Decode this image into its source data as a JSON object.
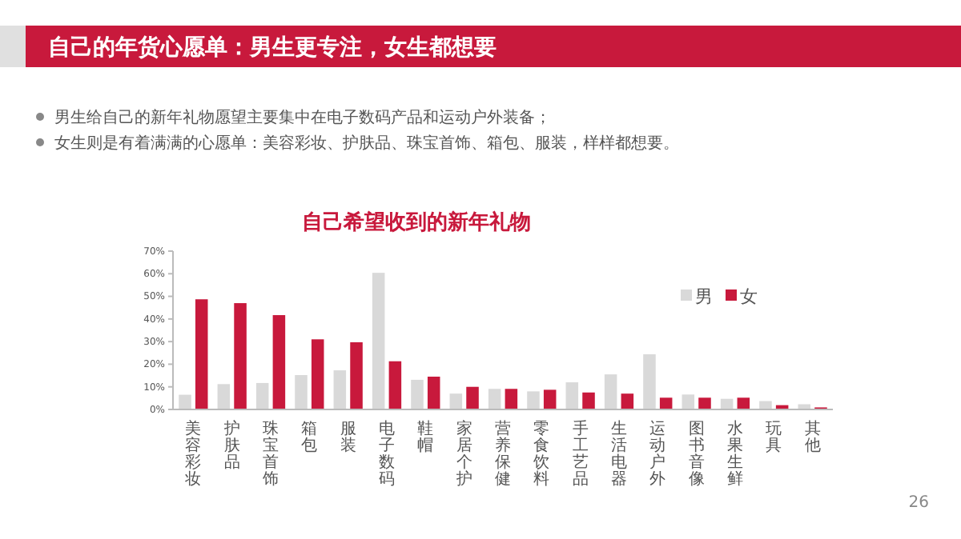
{
  "chart_data": {
    "type": "bar",
    "title": "自己的年货心愿单：男生更专注，女生都想要",
    "subtitle": "自己希望收到的新年礼物",
    "annotations": [
      "男生给自己的新年礼物愿望主要集中在电子数码产品和运动户外装备；",
      "女生则是有着满满的心愿单：美容彩妆、护肤品、珠宝首饰、箱包、服装，样样都想要。",
      "26"
    ],
    "categories": [
      "美容彩妆",
      "护肤品",
      "珠宝首饰",
      "箱包",
      "服装",
      "电子数码",
      "鞋帽",
      "家居个护",
      "营养保健",
      "零食饮料",
      "手工艺品",
      "生活电器",
      "运动户外",
      "图书音像",
      "水果生鲜",
      "玩具",
      "其他"
    ],
    "series": [
      {
        "name": "男",
        "color": "#d9d9d9",
        "values": [
          6.5,
          11.2,
          11.7,
          15.2,
          17.3,
          60.4,
          13.1,
          7,
          9.1,
          8,
          12,
          15.5,
          24.4,
          6.6,
          4.7,
          3.7,
          2.3
        ]
      },
      {
        "name": "女",
        "color": "#c8193c",
        "values": [
          48.7,
          47,
          41.7,
          31,
          29.7,
          21.3,
          14.5,
          10,
          9.1,
          8.7,
          7.5,
          7,
          5.2,
          5.2,
          5.2,
          1.9,
          0.9
        ]
      }
    ],
    "ylim": [
      0,
      70
    ],
    "yticks": [
      {
        "value": 0,
        "label": "0%"
      },
      {
        "value": 10,
        "label": "10%"
      },
      {
        "value": 20,
        "label": "20%"
      },
      {
        "value": 30,
        "label": "30%"
      },
      {
        "value": 40,
        "label": "40%"
      },
      {
        "value": 50,
        "label": "50%"
      },
      {
        "value": 60,
        "label": "60%"
      },
      {
        "value": 70,
        "label": "70%"
      }
    ],
    "grid": false,
    "legend": "top right"
  }
}
